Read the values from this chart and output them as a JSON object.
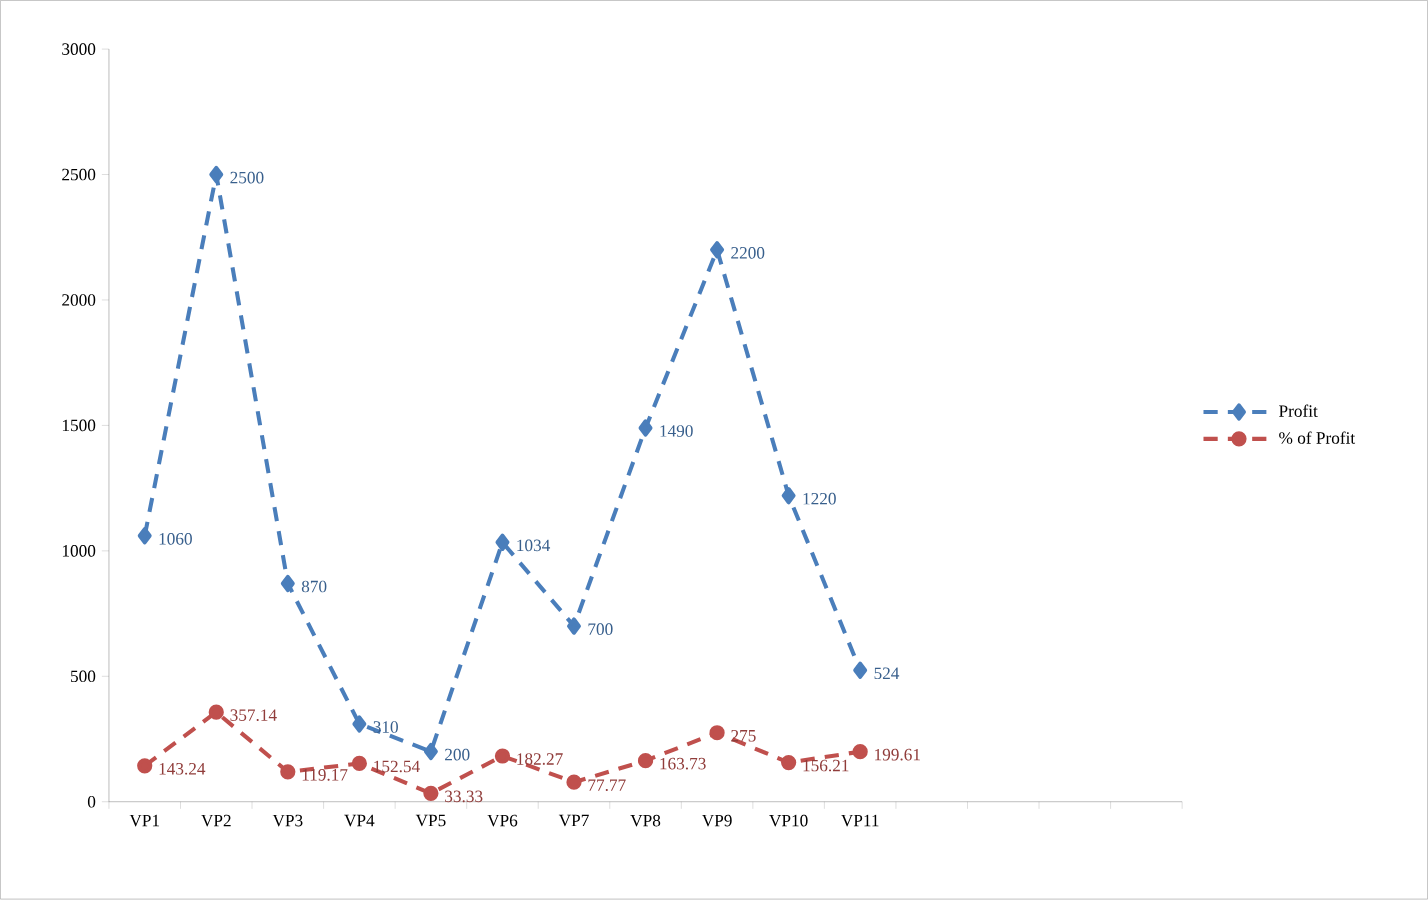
{
  "chart_data": {
    "type": "line",
    "categories": [
      "VP1",
      "VP2",
      "VP3",
      "VP4",
      "VP5",
      "VP6",
      "VP7",
      "VP8",
      "VP9",
      "VP10",
      "VP11",
      null,
      null,
      null,
      null
    ],
    "series": [
      {
        "name": "Profit",
        "color": "#4a7ebb",
        "marker": "diamond",
        "values": [
          1060,
          2500,
          870,
          310,
          200,
          1034,
          700,
          1490,
          2200,
          1220,
          524,
          null,
          null,
          null,
          null
        ]
      },
      {
        "name": "% of Profit",
        "color": "#c0504d",
        "marker": "circle",
        "values": [
          143.24,
          357.14,
          119.17,
          152.54,
          33.33,
          182.27,
          77.77,
          163.73,
          275,
          156.21,
          199.61,
          null,
          null,
          null,
          null
        ]
      }
    ],
    "ylim": [
      0,
      3000
    ],
    "yticks": [
      0,
      500,
      1000,
      1500,
      2000,
      2500,
      3000
    ],
    "data_labels": true,
    "legend": "right",
    "line_style": "dashed"
  }
}
